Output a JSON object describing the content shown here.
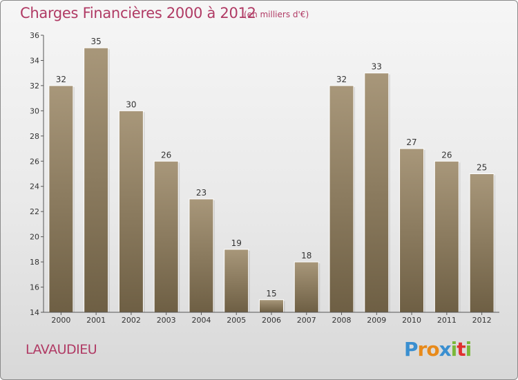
{
  "header": {
    "title": "Charges Financières 2000 à 2012",
    "subtitle": "(en milliers d'€)"
  },
  "footer": {
    "commune": "LAVAUDIEU",
    "brand": "Proxiti"
  },
  "colors": {
    "title": "#b03a64",
    "bar_top": "#a8977a",
    "bar_bottom": "#6e5f44",
    "axis": "#555555"
  },
  "chart_data": {
    "type": "bar",
    "categories": [
      "2000",
      "2001",
      "2002",
      "2003",
      "2004",
      "2005",
      "2006",
      "2007",
      "2008",
      "2009",
      "2010",
      "2011",
      "2012"
    ],
    "values": [
      32,
      35,
      30,
      26,
      23,
      19,
      15,
      18,
      32,
      33,
      27,
      26,
      25
    ],
    "title": "Charges Financières 2000 à 2012",
    "subtitle": "(en milliers d'€)",
    "xlabel": "",
    "ylabel": "",
    "ylim": [
      14,
      36
    ],
    "yticks": [
      14,
      16,
      18,
      20,
      22,
      24,
      26,
      28,
      30,
      32,
      34,
      36
    ],
    "grid": false,
    "data_labels": true
  }
}
